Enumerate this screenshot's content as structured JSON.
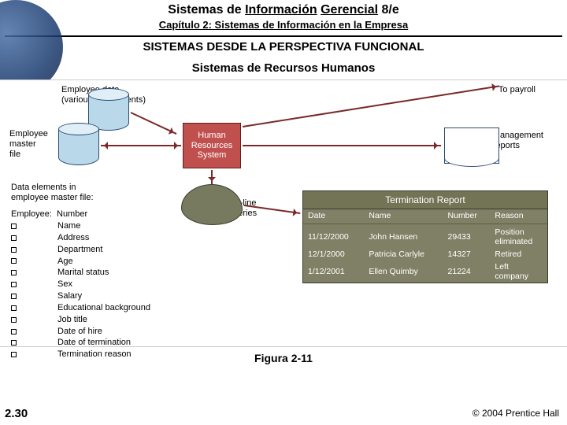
{
  "header": {
    "title_pre": "Sistemas de ",
    "title_u1": "Información",
    "title_mid": " ",
    "title_u2": "Gerencial",
    "title_post": " 8/e",
    "subtitle": "Capítulo 2: Sistemas de Información en la Empresa"
  },
  "section": {
    "head": "SISTEMAS DESDE LA PERSPECTIVA FUNCIONAL",
    "sub": "Sistemas de Recursos Humanos"
  },
  "diagram": {
    "emp_data": "Employee data\n(various departments)",
    "to_payroll": "To payroll",
    "emp_master": "Employee\nmaster\nfile",
    "hrs_box": "Human\nResources\nSystem",
    "mgmt_reports": "Management\nreports",
    "online_queries": "On-line\nqueries",
    "data_elements_title": "Data elements in\nemployee master file:",
    "employee_label": "Employee:",
    "number_label": "Number",
    "fields": [
      "Name",
      "Address",
      "Department",
      "Age",
      "Marital status",
      "Sex",
      "Salary",
      "Educational background",
      "Job title",
      "Date of hire",
      "Date of termination",
      "Termination reason"
    ]
  },
  "report": {
    "title": "Termination Report",
    "cols": [
      "Date",
      "Name",
      "Number",
      "Reason"
    ],
    "rows": [
      [
        "11/12/2000",
        "John Hansen",
        "29433",
        "Position\neliminated"
      ],
      [
        "12/1/2000",
        "Patricia Carlyle",
        "14327",
        "Retired"
      ],
      [
        "1/12/2001",
        "Ellen Quimby",
        "21224",
        "Left\ncompany"
      ]
    ]
  },
  "footer": {
    "fig": "Figura 2-11",
    "slide": "2.30",
    "copy": "© 2004 Prentice Hall"
  },
  "colors": {
    "accent_red": "#c0504d",
    "olive": "#808066",
    "cyl": "#b9d8ea",
    "arrow": "#7a2a2a"
  }
}
